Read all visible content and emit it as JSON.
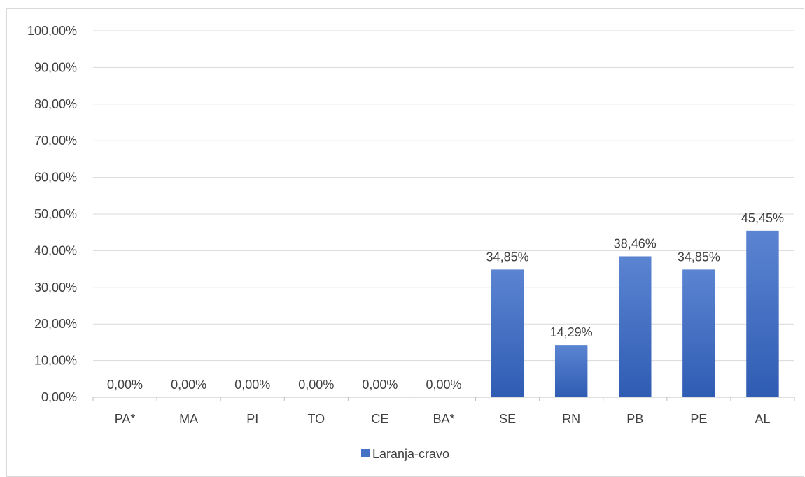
{
  "chart_data": {
    "type": "bar",
    "categories": [
      "PA*",
      "MA",
      "PI",
      "TO",
      "CE",
      "BA*",
      "SE",
      "RN",
      "PB",
      "PE",
      "AL"
    ],
    "series": [
      {
        "name": "Laranja-cravo",
        "values": [
          0.0,
          0.0,
          0.0,
          0.0,
          0.0,
          0.0,
          34.85,
          14.29,
          38.46,
          34.85,
          45.45
        ],
        "data_labels": [
          "0,00%",
          "0,00%",
          "0,00%",
          "0,00%",
          "0,00%",
          "0,00%",
          "34,85%",
          "14,29%",
          "38,46%",
          "34,85%",
          "45,45%"
        ]
      }
    ],
    "yticks": [
      0,
      10,
      20,
      30,
      40,
      50,
      60,
      70,
      80,
      90,
      100
    ],
    "ytick_labels": [
      "0,00%",
      "10,00%",
      "20,00%",
      "30,00%",
      "40,00%",
      "50,00%",
      "60,00%",
      "70,00%",
      "80,00%",
      "90,00%",
      "100,00%"
    ],
    "ylim": [
      0,
      100
    ],
    "grid": true,
    "legend_position": "bottom",
    "bar_color": "#4472c4",
    "bar_color_light": "#5b84d2",
    "bar_color_dark": "#2f5cb3",
    "gridline_color": "#d9d9d9",
    "text_color": "#404040"
  }
}
